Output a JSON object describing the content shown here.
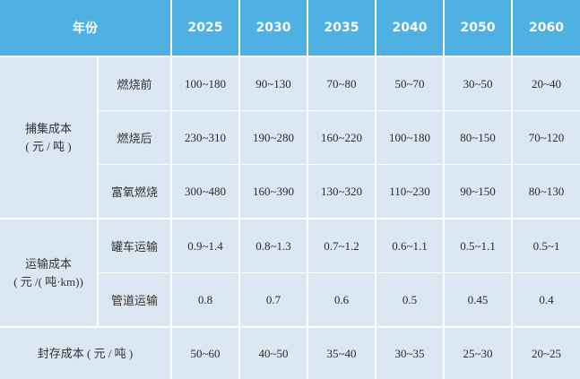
{
  "header": {
    "year_label": "年份",
    "years": [
      "2025",
      "2030",
      "2035",
      "2040",
      "2050",
      "2060"
    ]
  },
  "capture": {
    "label_line1": "捕集成本",
    "label_line2": "( 元 / 吨 )",
    "rows": [
      {
        "label": "燃烧前",
        "values": [
          "100~180",
          "90~130",
          "70~80",
          "50~70",
          "30~50",
          "20~40"
        ]
      },
      {
        "label": "燃烧后",
        "values": [
          "230~310",
          "190~280",
          "160~220",
          "100~180",
          "80~150",
          "70~120"
        ]
      },
      {
        "label": "富氧燃烧",
        "values": [
          "300~480",
          "160~390",
          "130~320",
          "110~230",
          "90~150",
          "80~130"
        ]
      }
    ]
  },
  "transport": {
    "label_line1": "运输成本",
    "label_line2": "( 元 /( 吨·km))",
    "rows": [
      {
        "label": "罐车运输",
        "values": [
          "0.9~1.4",
          "0.8~1.3",
          "0.7~1.2",
          "0.6~1.1",
          "0.5~1.1",
          "0.5~1"
        ]
      },
      {
        "label": "管道运输",
        "values": [
          "0.8",
          "0.7",
          "0.6",
          "0.5",
          "0.45",
          "0.4"
        ]
      }
    ]
  },
  "storage": {
    "label": "封存成本 ( 元 / 吨 )",
    "values": [
      "50~60",
      "40~50",
      "35~40",
      "30~35",
      "25~30",
      "20~25"
    ]
  }
}
